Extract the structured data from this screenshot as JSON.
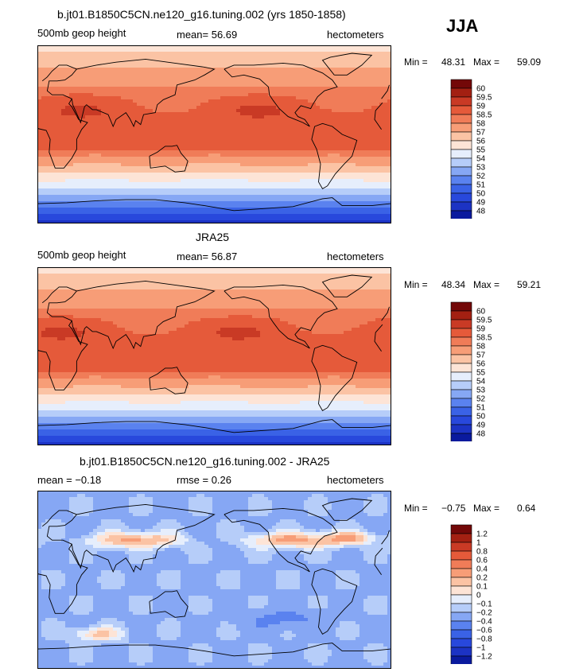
{
  "season": "JJA",
  "colors": {
    "scale": [
      "#0a1a9e",
      "#1c33c4",
      "#2848dc",
      "#3a62e6",
      "#5a82ef",
      "#86a7f4",
      "#b6cdf9",
      "#e6eefc",
      "#fde4d6",
      "#fbc3a4",
      "#f79d77",
      "#f07c58",
      "#e55a3a",
      "#c93a25",
      "#a32012",
      "#730808"
    ],
    "coast": "#000000",
    "land_hint": "#000000"
  },
  "chart_data": [
    {
      "type": "heatmap",
      "title": "b.jt01.B1850C5CN.ne120_g16.tuning.002 (yrs 1850-1858)",
      "left_label": "500mb geop height",
      "center_label": "mean=  56.69",
      "right_label": "hectometers",
      "min_label": "Min =",
      "min": "48.31",
      "max_label": "Max =",
      "max": "59.09",
      "levels": [
        "48",
        "49",
        "50",
        "51",
        "52",
        "53",
        "54",
        "55",
        "56",
        "57",
        "58",
        "58.5",
        "59",
        "59.5",
        "60"
      ],
      "kind": "field",
      "variant": 0
    },
    {
      "type": "heatmap",
      "title": "JRA25",
      "left_label": "500mb geop height",
      "center_label": "mean=  56.87",
      "right_label": "hectometers",
      "min_label": "Min =",
      "min": "48.34",
      "max_label": "Max =",
      "max": "59.21",
      "levels": [
        "48",
        "49",
        "50",
        "51",
        "52",
        "53",
        "54",
        "55",
        "56",
        "57",
        "58",
        "58.5",
        "59",
        "59.5",
        "60"
      ],
      "kind": "field",
      "variant": 1
    },
    {
      "type": "heatmap",
      "title": "b.jt01.B1850C5CN.ne120_g16.tuning.002 - JRA25",
      "left_label": "mean =  −0.18",
      "center_label": "rmse =    0.26",
      "right_label": "hectometers",
      "min_label": "Min =",
      "min": "−0.75",
      "max_label": "Max =",
      "max": "0.64",
      "levels": [
        "−1.2",
        "−1",
        "−0.8",
        "−0.6",
        "−0.4",
        "−0.2",
        "−0.1",
        "0",
        "0.1",
        "0.2",
        "0.4",
        "0.6",
        "0.8",
        "1",
        "1.2"
      ],
      "kind": "diff",
      "variant": 2
    }
  ]
}
